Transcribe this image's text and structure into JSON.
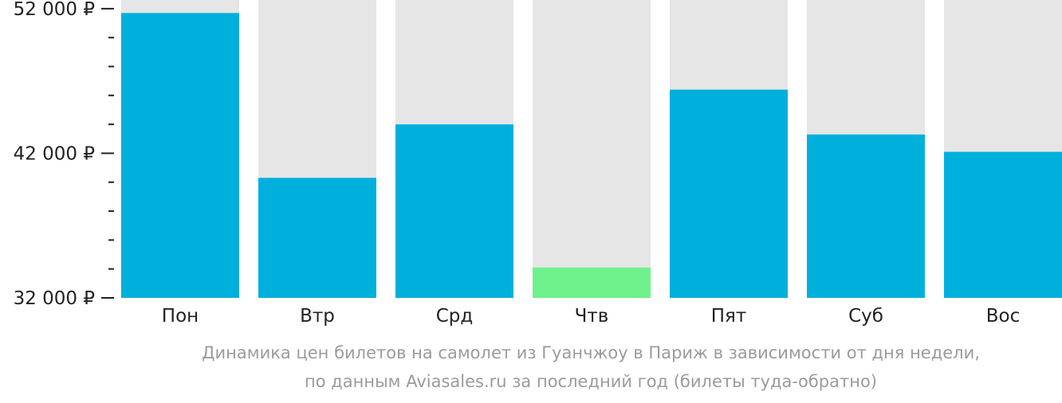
{
  "chart_data": {
    "type": "bar",
    "categories": [
      "Пон",
      "Втр",
      "Срд",
      "Чтв",
      "Пят",
      "Суб",
      "Вос"
    ],
    "values": [
      51700,
      40300,
      44000,
      34100,
      46400,
      43300,
      42100
    ],
    "highlight_index": 3,
    "ylim": [
      32000,
      52600
    ],
    "ytick_values": [
      32000,
      42000,
      52000
    ],
    "ytick_labels": [
      "32 000 ₽",
      "42 000 ₽",
      "52 000 ₽"
    ],
    "minor_tick_step": 2000,
    "grid": false,
    "colors": {
      "bar": "#00b0dc",
      "highlight": "#6ef18a",
      "track": "#e6e6e6",
      "axis_text": "#222222",
      "caption_text": "#9b9b9b"
    },
    "title": "",
    "xlabel": "",
    "ylabel": ""
  },
  "caption": {
    "line1": "Динамика цен билетов на самолет из Гуанчжоу в Париж в зависимости от дня недели,",
    "line2": "по данным Aviasales.ru за последний год (билеты туда-обратно)"
  }
}
